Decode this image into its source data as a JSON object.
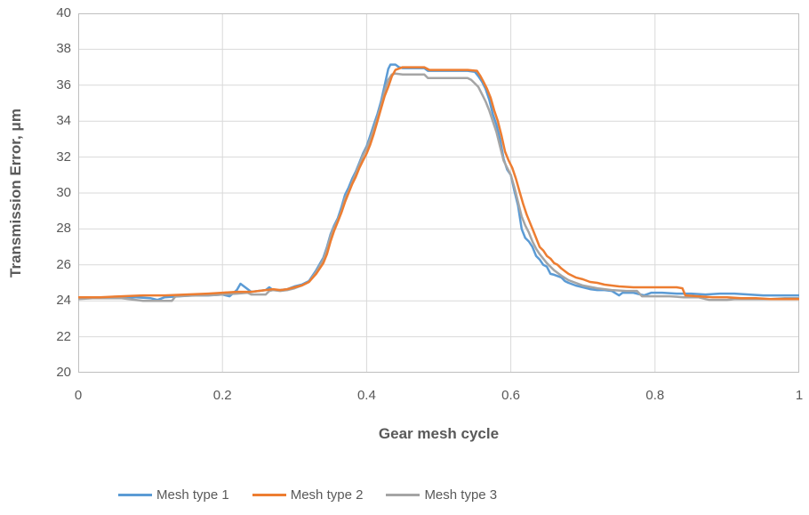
{
  "chart_data": {
    "type": "line",
    "title": "",
    "xlabel": "Gear mesh cycle",
    "ylabel": "Transmission Error, μm",
    "xlim": [
      0,
      1
    ],
    "ylim": [
      20,
      40
    ],
    "grid": true,
    "legend_position": "bottom",
    "x_ticks": [
      {
        "value": 0,
        "label": "0"
      },
      {
        "value": 0.2,
        "label": "0.2"
      },
      {
        "value": 0.4,
        "label": "0.4"
      },
      {
        "value": 0.6,
        "label": "0.6"
      },
      {
        "value": 0.8,
        "label": "0.8"
      },
      {
        "value": 1,
        "label": "1"
      }
    ],
    "y_ticks": [
      {
        "value": 20,
        "label": "20"
      },
      {
        "value": 22,
        "label": "22"
      },
      {
        "value": 24,
        "label": "24"
      },
      {
        "value": 26,
        "label": "26"
      },
      {
        "value": 28,
        "label": "28"
      },
      {
        "value": 30,
        "label": "30"
      },
      {
        "value": 32,
        "label": "32"
      },
      {
        "value": 34,
        "label": "34"
      },
      {
        "value": 36,
        "label": "36"
      },
      {
        "value": 38,
        "label": "38"
      },
      {
        "value": 40,
        "label": "40"
      }
    ],
    "series": [
      {
        "name": "Mesh type 1",
        "color": "#5B9BD5",
        "points": [
          [
            0.0,
            24.15
          ],
          [
            0.02,
            24.18
          ],
          [
            0.04,
            24.2
          ],
          [
            0.06,
            24.2
          ],
          [
            0.08,
            24.2
          ],
          [
            0.1,
            24.15
          ],
          [
            0.11,
            24.05
          ],
          [
            0.12,
            24.2
          ],
          [
            0.14,
            24.25
          ],
          [
            0.16,
            24.3
          ],
          [
            0.18,
            24.3
          ],
          [
            0.2,
            24.35
          ],
          [
            0.21,
            24.25
          ],
          [
            0.22,
            24.6
          ],
          [
            0.225,
            24.95
          ],
          [
            0.23,
            24.8
          ],
          [
            0.24,
            24.5
          ],
          [
            0.25,
            24.55
          ],
          [
            0.26,
            24.6
          ],
          [
            0.265,
            24.75
          ],
          [
            0.27,
            24.6
          ],
          [
            0.28,
            24.6
          ],
          [
            0.29,
            24.65
          ],
          [
            0.3,
            24.8
          ],
          [
            0.31,
            24.9
          ],
          [
            0.32,
            25.1
          ],
          [
            0.33,
            25.7
          ],
          [
            0.34,
            26.4
          ],
          [
            0.345,
            27.0
          ],
          [
            0.35,
            27.7
          ],
          [
            0.355,
            28.2
          ],
          [
            0.36,
            28.6
          ],
          [
            0.365,
            29.2
          ],
          [
            0.37,
            29.9
          ],
          [
            0.375,
            30.3
          ],
          [
            0.38,
            30.8
          ],
          [
            0.385,
            31.2
          ],
          [
            0.39,
            31.7
          ],
          [
            0.395,
            32.2
          ],
          [
            0.4,
            32.6
          ],
          [
            0.405,
            33.2
          ],
          [
            0.41,
            33.8
          ],
          [
            0.415,
            34.4
          ],
          [
            0.42,
            35.1
          ],
          [
            0.425,
            36.0
          ],
          [
            0.43,
            36.9
          ],
          [
            0.433,
            37.15
          ],
          [
            0.44,
            37.15
          ],
          [
            0.445,
            37.0
          ],
          [
            0.45,
            36.95
          ],
          [
            0.46,
            36.95
          ],
          [
            0.47,
            36.95
          ],
          [
            0.48,
            36.95
          ],
          [
            0.485,
            36.8
          ],
          [
            0.5,
            36.8
          ],
          [
            0.52,
            36.8
          ],
          [
            0.54,
            36.8
          ],
          [
            0.55,
            36.75
          ],
          [
            0.555,
            36.5
          ],
          [
            0.56,
            36.2
          ],
          [
            0.565,
            35.8
          ],
          [
            0.57,
            35.2
          ],
          [
            0.575,
            34.4
          ],
          [
            0.58,
            33.8
          ],
          [
            0.585,
            33.0
          ],
          [
            0.59,
            31.9
          ],
          [
            0.595,
            31.3
          ],
          [
            0.6,
            31.0
          ],
          [
            0.605,
            30.1
          ],
          [
            0.61,
            29.3
          ],
          [
            0.615,
            28.0
          ],
          [
            0.62,
            27.5
          ],
          [
            0.625,
            27.3
          ],
          [
            0.63,
            27.0
          ],
          [
            0.635,
            26.5
          ],
          [
            0.64,
            26.3
          ],
          [
            0.645,
            26.0
          ],
          [
            0.65,
            25.9
          ],
          [
            0.655,
            25.5
          ],
          [
            0.66,
            25.45
          ],
          [
            0.67,
            25.3
          ],
          [
            0.675,
            25.1
          ],
          [
            0.68,
            25.0
          ],
          [
            0.69,
            24.85
          ],
          [
            0.7,
            24.75
          ],
          [
            0.71,
            24.65
          ],
          [
            0.72,
            24.6
          ],
          [
            0.73,
            24.6
          ],
          [
            0.74,
            24.55
          ],
          [
            0.75,
            24.3
          ],
          [
            0.755,
            24.45
          ],
          [
            0.77,
            24.45
          ],
          [
            0.785,
            24.3
          ],
          [
            0.795,
            24.45
          ],
          [
            0.81,
            24.45
          ],
          [
            0.83,
            24.4
          ],
          [
            0.85,
            24.4
          ],
          [
            0.87,
            24.35
          ],
          [
            0.89,
            24.4
          ],
          [
            0.91,
            24.4
          ],
          [
            0.93,
            24.35
          ],
          [
            0.95,
            24.3
          ],
          [
            0.97,
            24.3
          ],
          [
            1.0,
            24.3
          ]
        ]
      },
      {
        "name": "Mesh type 2",
        "color": "#ED7D31",
        "points": [
          [
            0.0,
            24.2
          ],
          [
            0.03,
            24.2
          ],
          [
            0.06,
            24.25
          ],
          [
            0.09,
            24.3
          ],
          [
            0.12,
            24.3
          ],
          [
            0.15,
            24.35
          ],
          [
            0.18,
            24.4
          ],
          [
            0.2,
            24.45
          ],
          [
            0.22,
            24.5
          ],
          [
            0.24,
            24.5
          ],
          [
            0.25,
            24.55
          ],
          [
            0.26,
            24.6
          ],
          [
            0.27,
            24.65
          ],
          [
            0.28,
            24.6
          ],
          [
            0.29,
            24.65
          ],
          [
            0.3,
            24.75
          ],
          [
            0.31,
            24.85
          ],
          [
            0.32,
            25.05
          ],
          [
            0.33,
            25.5
          ],
          [
            0.34,
            26.1
          ],
          [
            0.345,
            26.6
          ],
          [
            0.35,
            27.3
          ],
          [
            0.355,
            27.9
          ],
          [
            0.36,
            28.4
          ],
          [
            0.365,
            28.9
          ],
          [
            0.37,
            29.5
          ],
          [
            0.375,
            30.0
          ],
          [
            0.38,
            30.5
          ],
          [
            0.385,
            30.9
          ],
          [
            0.39,
            31.4
          ],
          [
            0.395,
            31.8
          ],
          [
            0.4,
            32.2
          ],
          [
            0.405,
            32.7
          ],
          [
            0.41,
            33.3
          ],
          [
            0.415,
            34.0
          ],
          [
            0.42,
            34.7
          ],
          [
            0.425,
            35.4
          ],
          [
            0.43,
            35.9
          ],
          [
            0.435,
            36.5
          ],
          [
            0.44,
            36.85
          ],
          [
            0.45,
            37.0
          ],
          [
            0.46,
            37.0
          ],
          [
            0.47,
            37.0
          ],
          [
            0.48,
            37.0
          ],
          [
            0.487,
            36.85
          ],
          [
            0.5,
            36.85
          ],
          [
            0.52,
            36.85
          ],
          [
            0.54,
            36.85
          ],
          [
            0.553,
            36.8
          ],
          [
            0.558,
            36.5
          ],
          [
            0.562,
            36.2
          ],
          [
            0.567,
            35.8
          ],
          [
            0.572,
            35.3
          ],
          [
            0.577,
            34.6
          ],
          [
            0.582,
            34.0
          ],
          [
            0.587,
            33.2
          ],
          [
            0.592,
            32.3
          ],
          [
            0.597,
            31.8
          ],
          [
            0.602,
            31.4
          ],
          [
            0.607,
            30.8
          ],
          [
            0.612,
            30.1
          ],
          [
            0.617,
            29.4
          ],
          [
            0.622,
            28.8
          ],
          [
            0.627,
            28.3
          ],
          [
            0.632,
            27.8
          ],
          [
            0.637,
            27.3
          ],
          [
            0.64,
            27.0
          ],
          [
            0.645,
            26.8
          ],
          [
            0.65,
            26.5
          ],
          [
            0.655,
            26.35
          ],
          [
            0.66,
            26.1
          ],
          [
            0.665,
            26.0
          ],
          [
            0.67,
            25.8
          ],
          [
            0.68,
            25.5
          ],
          [
            0.69,
            25.3
          ],
          [
            0.7,
            25.2
          ],
          [
            0.71,
            25.05
          ],
          [
            0.72,
            25.0
          ],
          [
            0.73,
            24.9
          ],
          [
            0.74,
            24.85
          ],
          [
            0.75,
            24.8
          ],
          [
            0.77,
            24.75
          ],
          [
            0.79,
            24.75
          ],
          [
            0.81,
            24.75
          ],
          [
            0.83,
            24.75
          ],
          [
            0.838,
            24.7
          ],
          [
            0.842,
            24.3
          ],
          [
            0.86,
            24.25
          ],
          [
            0.88,
            24.2
          ],
          [
            0.9,
            24.2
          ],
          [
            0.92,
            24.15
          ],
          [
            0.94,
            24.15
          ],
          [
            0.96,
            24.1
          ],
          [
            0.98,
            24.1
          ],
          [
            1.0,
            24.1
          ]
        ]
      },
      {
        "name": "Mesh type 3",
        "color": "#A5A5A5",
        "points": [
          [
            0.0,
            24.1
          ],
          [
            0.02,
            24.15
          ],
          [
            0.04,
            24.15
          ],
          [
            0.06,
            24.15
          ],
          [
            0.08,
            24.05
          ],
          [
            0.09,
            24.0
          ],
          [
            0.11,
            24.0
          ],
          [
            0.13,
            24.0
          ],
          [
            0.135,
            24.25
          ],
          [
            0.15,
            24.28
          ],
          [
            0.17,
            24.3
          ],
          [
            0.19,
            24.32
          ],
          [
            0.2,
            24.35
          ],
          [
            0.22,
            24.4
          ],
          [
            0.235,
            24.45
          ],
          [
            0.24,
            24.35
          ],
          [
            0.26,
            24.35
          ],
          [
            0.265,
            24.55
          ],
          [
            0.27,
            24.6
          ],
          [
            0.28,
            24.55
          ],
          [
            0.29,
            24.6
          ],
          [
            0.3,
            24.7
          ],
          [
            0.31,
            24.85
          ],
          [
            0.32,
            25.05
          ],
          [
            0.33,
            25.6
          ],
          [
            0.34,
            26.3
          ],
          [
            0.345,
            26.9
          ],
          [
            0.35,
            27.6
          ],
          [
            0.355,
            28.1
          ],
          [
            0.36,
            28.5
          ],
          [
            0.365,
            29.0
          ],
          [
            0.37,
            29.7
          ],
          [
            0.375,
            30.1
          ],
          [
            0.38,
            30.6
          ],
          [
            0.385,
            31.1
          ],
          [
            0.39,
            31.6
          ],
          [
            0.395,
            32.1
          ],
          [
            0.4,
            32.5
          ],
          [
            0.405,
            33.0
          ],
          [
            0.41,
            33.6
          ],
          [
            0.415,
            34.2
          ],
          [
            0.42,
            34.9
          ],
          [
            0.425,
            35.7
          ],
          [
            0.43,
            36.3
          ],
          [
            0.435,
            36.6
          ],
          [
            0.44,
            36.65
          ],
          [
            0.45,
            36.6
          ],
          [
            0.46,
            36.6
          ],
          [
            0.47,
            36.6
          ],
          [
            0.48,
            36.6
          ],
          [
            0.485,
            36.4
          ],
          [
            0.5,
            36.4
          ],
          [
            0.52,
            36.4
          ],
          [
            0.54,
            36.4
          ],
          [
            0.545,
            36.3
          ],
          [
            0.55,
            36.1
          ],
          [
            0.555,
            35.9
          ],
          [
            0.56,
            35.5
          ],
          [
            0.565,
            35.1
          ],
          [
            0.57,
            34.6
          ],
          [
            0.575,
            34.0
          ],
          [
            0.58,
            33.4
          ],
          [
            0.585,
            32.6
          ],
          [
            0.59,
            31.8
          ],
          [
            0.595,
            31.4
          ],
          [
            0.6,
            31.0
          ],
          [
            0.605,
            30.3
          ],
          [
            0.61,
            29.5
          ],
          [
            0.615,
            28.7
          ],
          [
            0.62,
            28.2
          ],
          [
            0.625,
            27.8
          ],
          [
            0.63,
            27.3
          ],
          [
            0.635,
            26.9
          ],
          [
            0.64,
            26.6
          ],
          [
            0.65,
            26.1
          ],
          [
            0.66,
            25.7
          ],
          [
            0.67,
            25.4
          ],
          [
            0.68,
            25.15
          ],
          [
            0.69,
            25.0
          ],
          [
            0.7,
            24.85
          ],
          [
            0.72,
            24.7
          ],
          [
            0.74,
            24.6
          ],
          [
            0.76,
            24.55
          ],
          [
            0.775,
            24.55
          ],
          [
            0.782,
            24.25
          ],
          [
            0.8,
            24.25
          ],
          [
            0.82,
            24.25
          ],
          [
            0.84,
            24.2
          ],
          [
            0.86,
            24.2
          ],
          [
            0.875,
            24.05
          ],
          [
            0.9,
            24.05
          ],
          [
            0.91,
            24.1
          ],
          [
            0.94,
            24.1
          ],
          [
            0.96,
            24.1
          ],
          [
            0.98,
            24.15
          ],
          [
            1.0,
            24.15
          ]
        ]
      }
    ]
  },
  "colors": {
    "background": "#ffffff",
    "gridline": "#D9D9D9",
    "plot_border": "#BFBFBF",
    "label_text": "#595959"
  }
}
